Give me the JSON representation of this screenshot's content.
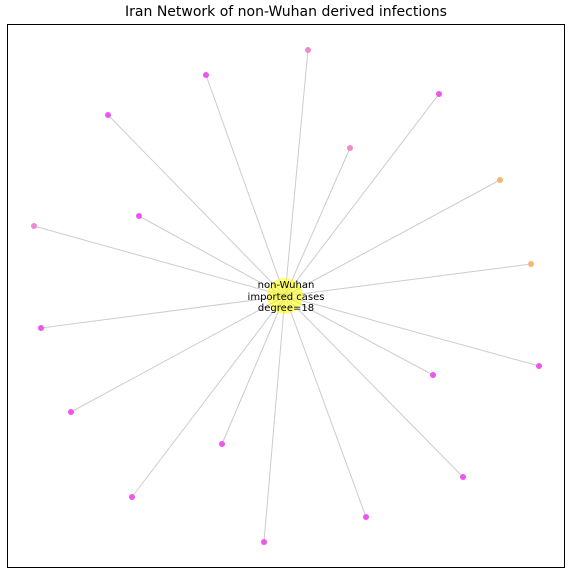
{
  "title": "Iran Network of non-Wuhan derived infections",
  "center_node": {
    "label_lines": [
      "non-Wuhan",
      "imported cases",
      "degree=18"
    ],
    "color": "#ffff00"
  },
  "edge_color": "#cccccc",
  "leaf_color_palette": {
    "magenta": "#ee55ee",
    "pink": "#f08ad0",
    "orange": "#f5b573"
  },
  "leaf_nodes": [
    {
      "id": "n1",
      "color": "magenta"
    },
    {
      "id": "n2",
      "color": "pink"
    },
    {
      "id": "n3",
      "color": "magenta"
    },
    {
      "id": "n4",
      "color": "magenta"
    },
    {
      "id": "n5",
      "color": "magenta"
    },
    {
      "id": "n6",
      "color": "pink"
    },
    {
      "id": "n7",
      "color": "pink"
    },
    {
      "id": "n8",
      "color": "orange"
    },
    {
      "id": "n9",
      "color": "orange"
    },
    {
      "id": "n10",
      "color": "magenta"
    },
    {
      "id": "n11",
      "color": "magenta"
    },
    {
      "id": "n12",
      "color": "magenta"
    },
    {
      "id": "n13",
      "color": "magenta"
    },
    {
      "id": "n14",
      "color": "magenta"
    },
    {
      "id": "n15",
      "color": "magenta"
    },
    {
      "id": "n16",
      "color": "magenta"
    },
    {
      "id": "n17",
      "color": "magenta"
    },
    {
      "id": "n18",
      "color": "magenta"
    }
  ]
}
